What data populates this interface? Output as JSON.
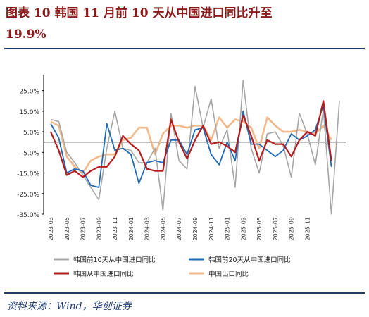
{
  "title": {
    "line1": "图表 10   韩国 11 月前 10 天从中国进口同比升至",
    "line2": "19.9%"
  },
  "source": "资料来源：Wind，华创证券",
  "chart_data": {
    "type": "line",
    "ylim": [
      -35,
      30
    ],
    "yticks": [
      "25.0%",
      "15.0%",
      "5.0%",
      "-5.0%",
      "-15.0%",
      "-25.0%",
      "-35.0%"
    ],
    "ytick_values": [
      25,
      15,
      5,
      -5,
      -15,
      -25,
      -35
    ],
    "xticks": [
      "2023-03",
      "2023-05",
      "2023-07",
      "2023-09",
      "2023-11",
      "2024-01",
      "2024-03",
      "2024-05",
      "2024-07",
      "2024-09",
      "2024-11",
      "2025-01",
      "2025-03",
      "2025-05",
      "2025-07",
      "2025-09",
      "2025-11"
    ],
    "legend_position": "bottom",
    "colors": {
      "gray": "#a6a6a6",
      "blue": "#1f6ab5",
      "red": "#b51d1d",
      "orange": "#f2b98c"
    },
    "series": [
      {
        "name": "韩国前10天从中国进口同比",
        "color": "#a6a6a6",
        "values": [
          11,
          10,
          -5,
          -10,
          -16,
          -22,
          -28,
          -3,
          15,
          -3,
          -4,
          -10,
          -10,
          -3,
          -33,
          14,
          -9,
          -13,
          27,
          7,
          21,
          -3,
          6,
          -22,
          30,
          -3,
          -15,
          4,
          5,
          -2,
          -17,
          14,
          4,
          -11,
          16,
          -35,
          20
        ]
      },
      {
        "name": "韩国前20天从中国进口同比",
        "color": "#1f6ab5",
        "values": [
          9,
          2,
          -15,
          -13,
          -14,
          -21,
          -22,
          9,
          -4,
          -3,
          -6,
          -20,
          -10,
          -9,
          -10,
          1,
          1,
          -6,
          6,
          7,
          -6,
          -11,
          0,
          -9,
          15,
          -1,
          -1,
          -4,
          -7,
          -4,
          4,
          1,
          3,
          6,
          18,
          -12
        ]
      },
      {
        "name": "韩国从中国进口同比",
        "color": "#b51d1d",
        "values": [
          5,
          -4,
          -16,
          -14,
          -17,
          -14,
          -12,
          -12,
          -7,
          3,
          -1,
          -4,
          -13,
          -14,
          -14,
          11,
          0,
          -8,
          1,
          8,
          -1,
          0,
          -2,
          -5,
          13,
          3,
          -9,
          1,
          -1,
          -1,
          -7,
          1,
          5,
          3,
          20,
          -9
        ]
      },
      {
        "name": "中国出口同比",
        "color": "#f2b98c",
        "values": [
          10,
          8,
          -7,
          -12,
          -15,
          -9,
          -7,
          -6,
          -6,
          1,
          2,
          7,
          7,
          -6,
          4,
          8,
          8,
          7,
          8,
          8,
          1,
          12,
          7,
          11,
          10,
          7,
          -3,
          12,
          8,
          5,
          5,
          6,
          5,
          4,
          8,
          1
        ]
      }
    ]
  }
}
